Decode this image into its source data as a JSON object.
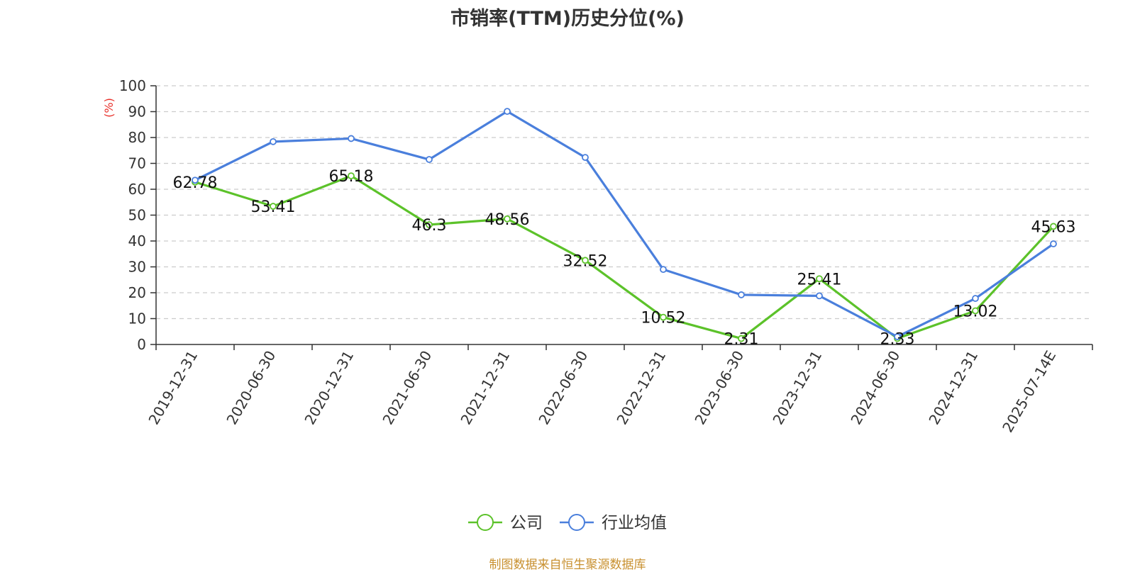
{
  "chart_data": {
    "type": "line",
    "title": "市销率(TTM)历史分位(%)",
    "ylabel": "(%)",
    "ylim": [
      0,
      100
    ],
    "yticks": [
      0,
      10,
      20,
      30,
      40,
      50,
      60,
      70,
      80,
      90,
      100
    ],
    "grid": true,
    "legend_position": "bottom-center",
    "categories": [
      "2019-12-31",
      "2020-06-30",
      "2020-12-31",
      "2021-06-30",
      "2021-12-31",
      "2022-06-30",
      "2022-12-31",
      "2023-06-30",
      "2023-12-31",
      "2024-06-30",
      "2024-12-31",
      "2025-07-14E"
    ],
    "series": [
      {
        "name": "公司",
        "color": "#5cc22a",
        "show_labels": true,
        "values": [
          62.78,
          53.41,
          65.18,
          46.3,
          48.56,
          32.52,
          10.52,
          2.31,
          25.41,
          2.33,
          13.02,
          45.63
        ]
      },
      {
        "name": "行业均值",
        "color": "#4a7fdc",
        "show_labels": false,
        "values": [
          63.5,
          78.4,
          79.6,
          71.5,
          90.1,
          72.3,
          29.0,
          19.2,
          18.8,
          3.0,
          17.8,
          38.9
        ]
      }
    ],
    "ylabel_color": "#e8302a"
  },
  "footer": {
    "source": "制图数据来自恒生聚源数据库"
  }
}
